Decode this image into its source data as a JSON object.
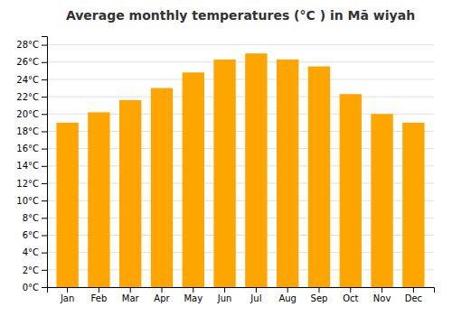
{
  "chart_data": {
    "type": "bar",
    "title": "Average monthly temperatures (°C ) in Mā wiyah",
    "categories": [
      "Jan",
      "Feb",
      "Mar",
      "Apr",
      "May",
      "Jun",
      "Jul",
      "Aug",
      "Sep",
      "Oct",
      "Nov",
      "Dec"
    ],
    "values": [
      19.0,
      20.2,
      21.6,
      23.0,
      24.8,
      26.3,
      27.0,
      26.3,
      25.5,
      22.3,
      20.0,
      19.0
    ],
    "color": "#FFA500",
    "ylim": [
      0,
      29
    ],
    "yticks": [
      {
        "value": 0,
        "label": "0°C"
      },
      {
        "value": 2,
        "label": "2°C"
      },
      {
        "value": 4,
        "label": "4°C"
      },
      {
        "value": 6,
        "label": "6°C"
      },
      {
        "value": 8,
        "label": "8°C"
      },
      {
        "value": 10,
        "label": "10°C"
      },
      {
        "value": 12,
        "label": "12°C"
      },
      {
        "value": 14,
        "label": "14°C"
      },
      {
        "value": 16,
        "label": "16°C"
      },
      {
        "value": 18,
        "label": "18°C"
      },
      {
        "value": 20,
        "label": "20°C"
      },
      {
        "value": 22,
        "label": "22°C"
      },
      {
        "value": 24,
        "label": "24°C"
      },
      {
        "value": 26,
        "label": "26°C"
      },
      {
        "value": 28,
        "label": "28°C"
      }
    ],
    "grid": true
  }
}
